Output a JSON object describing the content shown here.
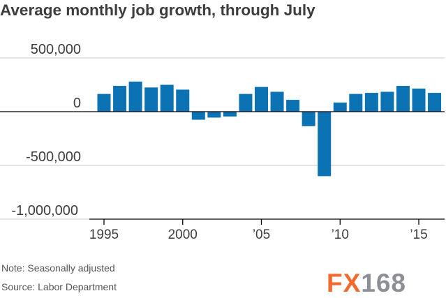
{
  "title": "Average monthly job growth, through July",
  "note": "Note: Seasonally adjusted",
  "source": "Source: Labor Department",
  "watermark": {
    "part1": "FX",
    "part2": "168"
  },
  "colors": {
    "bar": "#0b73b3",
    "axis": "#000000",
    "grid": "#c8c8c8",
    "text": "#3d3d3d"
  },
  "chart_data": {
    "type": "bar",
    "title": "Average monthly job growth, through July",
    "xlabel": "",
    "ylabel": "",
    "ylim": [
      -1000000,
      500000
    ],
    "y_ticks": [
      {
        "value": 500000,
        "label": "500,000"
      },
      {
        "value": 0,
        "label": "0"
      },
      {
        "value": -500000,
        "label": "-500,000"
      },
      {
        "value": -1000000,
        "label": "-1,000,000"
      }
    ],
    "x_ticks": [
      {
        "year": 1995,
        "label": "1995"
      },
      {
        "year": 2000,
        "label": "2000"
      },
      {
        "year": 2005,
        "label": "’05"
      },
      {
        "year": 2010,
        "label": "’10"
      },
      {
        "year": 2015,
        "label": "’15"
      }
    ],
    "categories": [
      1995,
      1996,
      1997,
      1998,
      1999,
      2000,
      2001,
      2002,
      2003,
      2004,
      2005,
      2006,
      2007,
      2008,
      2009,
      2010,
      2011,
      2012,
      2013,
      2014,
      2015,
      2016
    ],
    "values": [
      165000,
      240000,
      280000,
      225000,
      250000,
      205000,
      -75000,
      -55000,
      -45000,
      165000,
      230000,
      185000,
      110000,
      -135000,
      -600000,
      85000,
      165000,
      175000,
      185000,
      240000,
      215000,
      175000
    ],
    "grid": true,
    "legend": "none"
  }
}
